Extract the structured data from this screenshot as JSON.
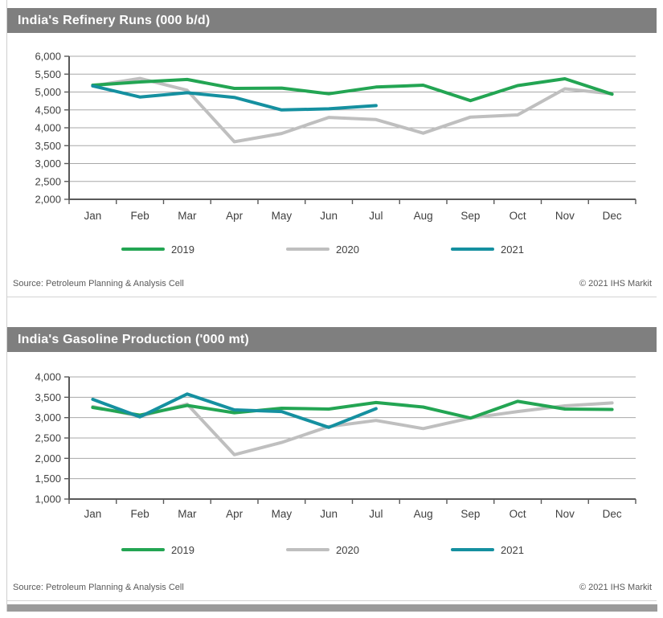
{
  "colors": {
    "green_2019": "#23a553",
    "gray_2020": "#bfbfbf",
    "teal_2021": "#1590a0",
    "title_bar": "#7f7f7f",
    "axis": "#595959",
    "grid": "#a8a8a8",
    "tick_text": "#404040",
    "source_text": "#595959"
  },
  "chart_data": [
    {
      "type": "line",
      "title": "India's Refinery Runs (000 b/d)",
      "x": [
        "Jan",
        "Feb",
        "Mar",
        "Apr",
        "May",
        "Jun",
        "Jul",
        "Aug",
        "Sep",
        "Oct",
        "Nov",
        "Dec"
      ],
      "series": [
        {
          "name": "2019",
          "color": "#23a553",
          "z": 2,
          "values": [
            5190,
            5280,
            5350,
            5100,
            5110,
            4950,
            5140,
            5190,
            4760,
            5180,
            5370,
            4940
          ]
        },
        {
          "name": "2020",
          "color": "#bfbfbf",
          "z": 1,
          "values": [
            5170,
            5380,
            5050,
            3610,
            3840,
            4290,
            4230,
            3850,
            4300,
            4360,
            5090,
            4950
          ]
        },
        {
          "name": "2021",
          "color": "#1590a0",
          "z": 3,
          "values": [
            5170,
            4860,
            4980,
            4850,
            4500,
            4530,
            4620
          ]
        }
      ],
      "ylim": [
        2000,
        6000
      ],
      "ytick_step": 500,
      "grid": true,
      "legend_position": "bottom",
      "source": "Source: Petroleum Planning & Analysis Cell",
      "copyright": "© 2021 IHS Markit"
    },
    {
      "type": "line",
      "title": "India's Gasoline Production ('000 mt)",
      "x": [
        "Jan",
        "Feb",
        "Mar",
        "Apr",
        "May",
        "Jun",
        "Jul",
        "Aug",
        "Sep",
        "Oct",
        "Nov",
        "Dec"
      ],
      "series": [
        {
          "name": "2019",
          "color": "#23a553",
          "z": 2,
          "values": [
            3250,
            3060,
            3300,
            3120,
            3230,
            3210,
            3370,
            3260,
            2990,
            3400,
            3210,
            3200
          ]
        },
        {
          "name": "2020",
          "color": "#bfbfbf",
          "z": 1,
          "values": [
            3270,
            3030,
            3330,
            2090,
            2390,
            2780,
            2930,
            2730,
            2990,
            3150,
            3290,
            3360
          ]
        },
        {
          "name": "2021",
          "color": "#1590a0",
          "z": 3,
          "values": [
            3450,
            3020,
            3580,
            3190,
            3150,
            2760,
            3220
          ]
        }
      ],
      "ylim": [
        1000,
        4000
      ],
      "ytick_step": 500,
      "grid": true,
      "legend_position": "bottom",
      "source": "Source: Petroleum Planning & Analysis Cell",
      "copyright": "© 2021 IHS Markit"
    }
  ]
}
